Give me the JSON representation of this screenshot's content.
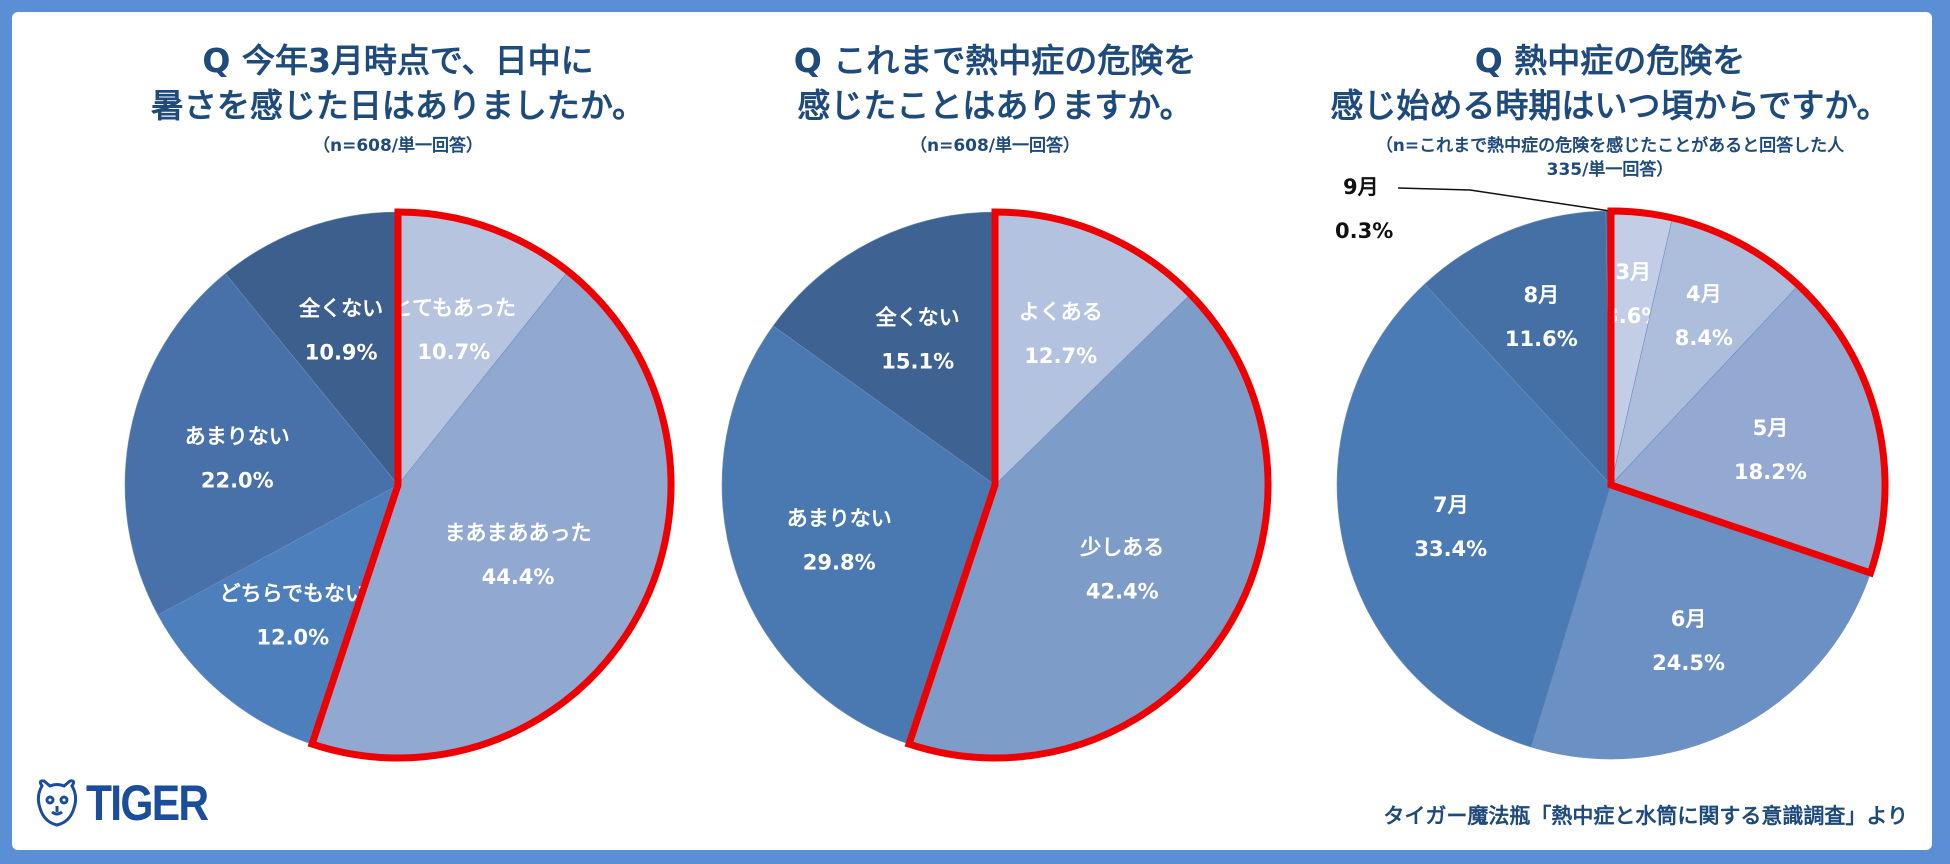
{
  "chart_data": [
    {
      "type": "pie",
      "title": [
        "Q 今年3月時点で、日中に",
        "暑さを感じた日はありましたか。"
      ],
      "subtitle": [
        "（n=608/単一回答）"
      ],
      "categories": [
        "とてもあった",
        "まあまああった",
        "どちらでもない",
        "あまりない",
        "全くない"
      ],
      "values": [
        10.7,
        44.4,
        12.0,
        22.0,
        10.9
      ],
      "labels": [
        "10.7%",
        "44.4%",
        "12.0%",
        "22.0%",
        "10.9%"
      ],
      "colors": [
        "#b6c4e0",
        "#91a8d0",
        "#4d7fbd",
        "#4771a8",
        "#3d5f8d"
      ],
      "highlight": [
        "とてもあった",
        "まあまああった"
      ],
      "highlight_color": "#ee0000"
    },
    {
      "type": "pie",
      "title": [
        "Q これまで熱中症の危険を",
        "感じたことはありますか。"
      ],
      "subtitle": [
        "（n=608/単一回答）"
      ],
      "categories": [
        "よくある",
        "少しある",
        "あまりない",
        "全くない"
      ],
      "values": [
        12.7,
        42.4,
        29.8,
        15.1
      ],
      "labels": [
        "12.7%",
        "42.4%",
        "29.8%",
        "15.1%"
      ],
      "colors": [
        "#b3c2df",
        "#7e9cc8",
        "#4a78b0",
        "#3e6392"
      ],
      "highlight": [
        "よくある",
        "少しある"
      ],
      "highlight_color": "#ee0000"
    },
    {
      "type": "pie",
      "title": [
        "Q 熱中症の危険を",
        "感じ始める時期はいつ頃からですか。"
      ],
      "subtitle": [
        "（n=これまで熱中症の危険を感じたことがあると回答した人",
        "335/単一回答）"
      ],
      "categories": [
        "3月",
        "4月",
        "5月",
        "6月",
        "7月",
        "8月",
        "9月"
      ],
      "values": [
        3.6,
        8.4,
        18.2,
        24.5,
        33.4,
        11.6,
        0.3
      ],
      "labels": [
        "3.6%",
        "8.4%",
        "18.2%",
        "24.5%",
        "33.4%",
        "11.6%",
        "0.3%"
      ],
      "colors": [
        "#c3cee6",
        "#adbedd",
        "#93a9d1",
        "#6b90c4",
        "#4a7bb4",
        "#4470a5",
        "#3b5e8c"
      ],
      "highlight": [
        "3月",
        "4月",
        "5月"
      ],
      "highlight_color": "#ee0000"
    }
  ],
  "logo": {
    "text": "TIGER",
    "icon": "tiger-face-icon",
    "color": "#1a4d9c"
  },
  "source": "タイガー魔法瓶「熱中症と水筒に関する意識調査」より",
  "frame_color": "#5a8fd6"
}
